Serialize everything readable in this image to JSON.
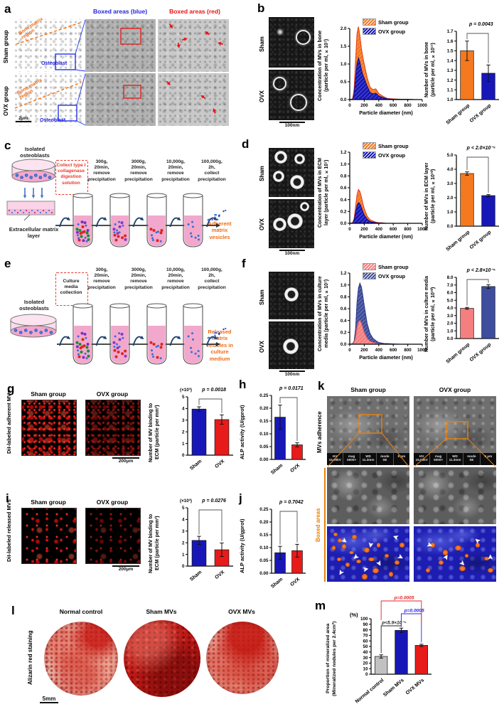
{
  "panels": {
    "a": {
      "letter": "a",
      "rows": [
        "Sham group",
        "OVX group"
      ],
      "headers": {
        "blue": "Boxed areas (blue)",
        "red": "Boxed areas (red)"
      },
      "bone_matrix": "Bone matrix\nregion",
      "osteoblast": "Osteoblast",
      "scale": "2μm"
    },
    "b": {
      "letter": "b",
      "imgs": [
        "Sham",
        "OVX"
      ],
      "scale": "100nm"
    },
    "c": {
      "letter": "c",
      "source": "Isolated\nosteoblasts",
      "box": "Collect type I\ncollagenase\ndigestion\nsolution",
      "steps": [
        "300g,\n20min,\nremove\nprecipitation",
        "3000g,\n20min,\nremove\nprecipitation",
        "10,000g,\n20min,\nremove\nprecipitation",
        "100,000g,\n2h,\ncollect\nprecipitation"
      ],
      "ecm": "Extracellular matrix\nlayer",
      "result": "Adherent\nmatrix\nvesicles"
    },
    "d": {
      "letter": "d",
      "imgs": [
        "Sham",
        "OVX"
      ],
      "scale": "100nm"
    },
    "e": {
      "letter": "e",
      "source": "Isolated\nosteoblasts",
      "box": "Culture\nmedia\ncollection",
      "steps": [
        "300g,\n20min,\nremove\nprecipitation",
        "3000g,\n20min,\nremove\nprecipitation",
        "10,000g,\n20min,\nremove\nprecipitation",
        "100,000g,\n2h,\ncollect\nprecipitation"
      ],
      "result": "Released\nmatrix\nvesicles in\nculture\nmedium"
    },
    "f": {
      "letter": "f",
      "imgs": [
        "Sham",
        "OVX"
      ],
      "scale": "100nm"
    },
    "g": {
      "letter": "g",
      "side": "DiI-labeled\nadherent MVs",
      "headers": [
        "Sham group",
        "OVX group"
      ],
      "scale": "200μm"
    },
    "h": {
      "letter": "h"
    },
    "i": {
      "letter": "i",
      "side": "DiI-labeled\nreleased MVs",
      "headers": [
        "Sham group",
        "OVX group"
      ],
      "scale": "200μm"
    },
    "j": {
      "letter": "j"
    },
    "k": {
      "letter": "k",
      "headers": [
        "Sham group",
        "OVX group"
      ],
      "rows": [
        "MVs adherence",
        "Boxed areas"
      ],
      "sem": [
        "HV\n15.00kV",
        "mag\n5000×",
        "WD\n11.3mm",
        "mode\nSE",
        "5 μm"
      ]
    },
    "l": {
      "letter": "l",
      "side": "Alizarin red staining",
      "headers": [
        "Normal control",
        "Sham MVs",
        "OVX MVs"
      ],
      "scale": "5mm"
    },
    "m": {
      "letter": "m"
    }
  },
  "chart_data": {
    "b_dist": {
      "type": "area",
      "xlabel": "Particle diameter (nm)",
      "ylabel": [
        "Concentration of MVs in bone",
        "(particle per ml, ×10⁷)"
      ],
      "xlim": [
        0,
        1000
      ],
      "xticks": [
        0,
        200,
        400,
        600,
        800,
        1000
      ],
      "ylim": [
        0,
        2.0
      ],
      "yticks": [
        0.0,
        0.5,
        1.0,
        1.5,
        2.0
      ],
      "ydec": 1,
      "legend": [
        {
          "label": "Sham group",
          "color": "#F4791F"
        },
        {
          "label": "OVX group",
          "color": "#1717B8"
        }
      ],
      "x": [
        0,
        40,
        60,
        80,
        100,
        120,
        140,
        160,
        180,
        200,
        240,
        280,
        320,
        360,
        400,
        440,
        480,
        520,
        600,
        700,
        800,
        900,
        1000
      ],
      "series": [
        {
          "name": "Sham group",
          "color": "#F4791F",
          "edge": "#E23B1E",
          "y": [
            0,
            0.02,
            0.3,
            1.1,
            1.85,
            2.05,
            1.8,
            1.45,
            1.2,
            1.0,
            0.62,
            0.35,
            0.28,
            0.3,
            0.17,
            0.12,
            0.07,
            0.03,
            0.02,
            0.01,
            0.01,
            0,
            0
          ]
        },
        {
          "name": "OVX group",
          "color": "#1717B8",
          "edge": "#0D0D86",
          "y": [
            0,
            0.01,
            0.15,
            0.6,
            1.0,
            1.17,
            1.05,
            0.85,
            0.7,
            0.6,
            0.38,
            0.2,
            0.16,
            0.18,
            0.1,
            0.07,
            0.04,
            0.02,
            0.01,
            0.005,
            0.005,
            0,
            0
          ]
        }
      ]
    },
    "b_bar": {
      "type": "bar",
      "ylabel": [
        "Number of MVs in bone",
        "(particle per ml, ×10¹¹)"
      ],
      "ylim": [
        1.0,
        1.7
      ],
      "yticks": [
        1.0,
        1.1,
        1.2,
        1.3,
        1.4,
        1.5,
        1.6,
        1.7
      ],
      "ydec": 1,
      "p": "p = 0.0043",
      "categories": [
        "Sham group",
        "OVX group"
      ],
      "values": [
        1.5,
        1.27
      ],
      "errors": [
        0.1,
        0.085
      ],
      "colors": [
        "#F4791F",
        "#1717B8"
      ]
    },
    "d_dist": {
      "type": "area",
      "xlabel": "Particle diameter (nm)",
      "ylabel": [
        "Concentration of MVs in ECM",
        "layer (particle per ml, ×10⁷)"
      ],
      "xlim": [
        0,
        1000
      ],
      "xticks": [
        0,
        200,
        400,
        600,
        800,
        1000
      ],
      "ylim": [
        0,
        1.2
      ],
      "yticks": [
        0.0,
        0.2,
        0.4,
        0.6,
        0.8,
        1.0,
        1.2
      ],
      "ydec": 1,
      "legend": [
        {
          "label": "Sham group",
          "color": "#F4791F"
        },
        {
          "label": "OVX group",
          "color": "#1717B8"
        }
      ],
      "x": [
        0,
        40,
        60,
        80,
        100,
        120,
        140,
        160,
        180,
        200,
        240,
        280,
        320,
        360,
        400,
        440,
        480,
        520,
        600,
        700,
        800,
        900,
        1000
      ],
      "series": [
        {
          "name": "Sham group",
          "color": "#F4791F",
          "edge": "#E23B1E",
          "y": [
            0,
            0.01,
            0.08,
            0.28,
            0.48,
            0.57,
            0.54,
            0.45,
            0.34,
            0.25,
            0.12,
            0.06,
            0.04,
            0.02,
            0.01,
            0.01,
            0.005,
            0,
            0,
            0,
            0,
            0,
            0
          ]
        },
        {
          "name": "OVX group",
          "color": "#1717B8",
          "edge": "#0D0D86",
          "y": [
            0,
            0.005,
            0.05,
            0.17,
            0.3,
            0.35,
            0.33,
            0.27,
            0.2,
            0.14,
            0.07,
            0.03,
            0.02,
            0.01,
            0.005,
            0.005,
            0,
            0,
            0,
            0,
            0,
            0,
            0
          ]
        }
      ]
    },
    "d_bar": {
      "type": "bar",
      "ylabel": [
        "Number of MVs in ECM layer",
        "(particle per ml, ×10¹⁰)"
      ],
      "ylim": [
        0,
        5
      ],
      "yticks": [
        0,
        1,
        2,
        3,
        4,
        5
      ],
      "ydec": 1,
      "p": "p < 2.0×10⁻⁵",
      "categories": [
        "Sham group",
        "OVX group"
      ],
      "values": [
        3.7,
        2.15
      ],
      "errors": [
        0.12,
        0.07
      ],
      "colors": [
        "#F4791F",
        "#1717B8"
      ]
    },
    "f_dist": {
      "type": "area",
      "xlabel": "Particle diameter (nm)",
      "ylabel": [
        "Concentration of MVs in culture",
        "media (particle per ml, ×10⁷)"
      ],
      "xlim": [
        0,
        1000
      ],
      "xticks": [
        0,
        200,
        400,
        600,
        800,
        1000
      ],
      "ylim": [
        0,
        1.2
      ],
      "yticks": [
        0.0,
        0.2,
        0.4,
        0.6,
        0.8,
        1.0,
        1.2
      ],
      "ydec": 1,
      "draw_order": [
        1,
        0
      ],
      "legend": [
        {
          "label": "Sham group",
          "color": "#F57F7F"
        },
        {
          "label": "OVX group",
          "color": "#3E4D9D"
        }
      ],
      "x": [
        0,
        40,
        60,
        80,
        100,
        120,
        140,
        160,
        180,
        200,
        240,
        280,
        320,
        360,
        400,
        440,
        480,
        520,
        600,
        700,
        800,
        900,
        1000
      ],
      "series": [
        {
          "name": "Sham group",
          "color": "#F57F7F",
          "edge": "#E05A5A",
          "y": [
            0,
            0.005,
            0.03,
            0.12,
            0.28,
            0.38,
            0.4,
            0.36,
            0.28,
            0.2,
            0.1,
            0.05,
            0.03,
            0.02,
            0.01,
            0.005,
            0,
            0,
            0,
            0,
            0,
            0,
            0
          ]
        },
        {
          "name": "OVX group",
          "color": "#3E4D9D",
          "edge": "#2B3A80",
          "y": [
            0,
            0.01,
            0.05,
            0.25,
            0.7,
            0.95,
            1.03,
            0.97,
            0.82,
            0.65,
            0.35,
            0.18,
            0.1,
            0.06,
            0.03,
            0.02,
            0.01,
            0.01,
            0.005,
            0,
            0,
            0,
            0
          ]
        }
      ]
    },
    "f_bar": {
      "type": "bar",
      "ylabel": [
        "Number of MVs in culture media",
        "(particle per ml, ×10¹⁰)"
      ],
      "ylim": [
        0,
        8
      ],
      "yticks": [
        0,
        1,
        2,
        3,
        4,
        5,
        6,
        7,
        8
      ],
      "ydec": 1,
      "p": "p < 2.8×10⁻⁵",
      "categories": [
        "Sham group",
        "OVX group"
      ],
      "values": [
        3.95,
        6.8
      ],
      "errors": [
        0.12,
        0.25
      ],
      "colors": [
        "#F57F7F",
        "#3E4D9D"
      ]
    },
    "g_bar": {
      "type": "bar",
      "ylabel": [
        "Number of MV binding to",
        "ECM (particle per mm²)"
      ],
      "mult": "(×10³)",
      "ylim": [
        0,
        5
      ],
      "yticks": [
        0,
        1,
        2,
        3,
        4,
        5
      ],
      "ydec": 0,
      "p": "p = 0.0018",
      "categories": [
        "Sham",
        "OVX"
      ],
      "values": [
        3.95,
        3.05
      ],
      "errors": [
        0.2,
        0.4
      ],
      "colors": [
        "#1717B8",
        "#E81B1B"
      ]
    },
    "h_bar": {
      "type": "bar",
      "ylabel": [
        "ALP activity (U/gprot)"
      ],
      "ylim": [
        0,
        0.25
      ],
      "yticks": [
        0,
        0.05,
        0.1,
        0.15,
        0.2,
        0.25
      ],
      "ydec": 2,
      "p": "p = 0.0171",
      "categories": [
        "Sham",
        "OVX"
      ],
      "values": [
        0.165,
        0.057
      ],
      "errors": [
        0.047,
        0.008
      ],
      "colors": [
        "#1717B8",
        "#E81B1B"
      ]
    },
    "i_bar": {
      "type": "bar",
      "ylabel": [
        "Number of MV binding to",
        "ECM (particle per mm²)"
      ],
      "mult": "(×10³)",
      "ylim": [
        0,
        5
      ],
      "yticks": [
        0,
        1,
        2,
        3,
        4,
        5
      ],
      "ydec": 0,
      "p": "p = 0.0276",
      "categories": [
        "Sham",
        "OVX"
      ],
      "values": [
        2.2,
        1.4
      ],
      "errors": [
        0.35,
        0.58
      ],
      "colors": [
        "#1717B8",
        "#E81B1B"
      ]
    },
    "j_bar": {
      "type": "bar",
      "ylabel": [
        "ALP activity (U/gprot)"
      ],
      "ylim": [
        0,
        0.25
      ],
      "yticks": [
        0,
        0.05,
        0.1,
        0.15,
        0.2,
        0.25
      ],
      "ydec": 2,
      "p": "p = 0.7042",
      "categories": [
        "Sham",
        "OVX"
      ],
      "values": [
        0.08,
        0.088
      ],
      "errors": [
        0.025,
        0.025
      ],
      "colors": [
        "#1717B8",
        "#E81B1B"
      ]
    },
    "m_bar": {
      "type": "bar",
      "ylabel": [
        "Proportion of mineralized area",
        "(Mineralized nodules per 2.4cm²)"
      ],
      "unit": "(%)",
      "ylim": [
        0,
        100
      ],
      "yticks": [
        0,
        10,
        20,
        30,
        40,
        50,
        60,
        70,
        80,
        90,
        100
      ],
      "ydec": 0,
      "categories": [
        "Normal control",
        "Sham MVs",
        "OVX MVs"
      ],
      "values": [
        32,
        79,
        52
      ],
      "errors": [
        3,
        4,
        2
      ],
      "colors": [
        "#C1C1C1",
        "#1717B8",
        "#E81B1B"
      ],
      "brackets": [
        {
          "a": 0,
          "b": 1,
          "label": "p<5.9×10⁻⁵",
          "color": "#222222",
          "rise": -10
        },
        {
          "a": 1,
          "b": 2,
          "label": "p=0.0005",
          "color": "#2424E8",
          "rise": 7
        },
        {
          "a": 0,
          "b": 2,
          "label": "p=0.0005",
          "color": "#E82424",
          "rise": 25,
          "ca": 30,
          "cb": 33
        }
      ]
    }
  }
}
